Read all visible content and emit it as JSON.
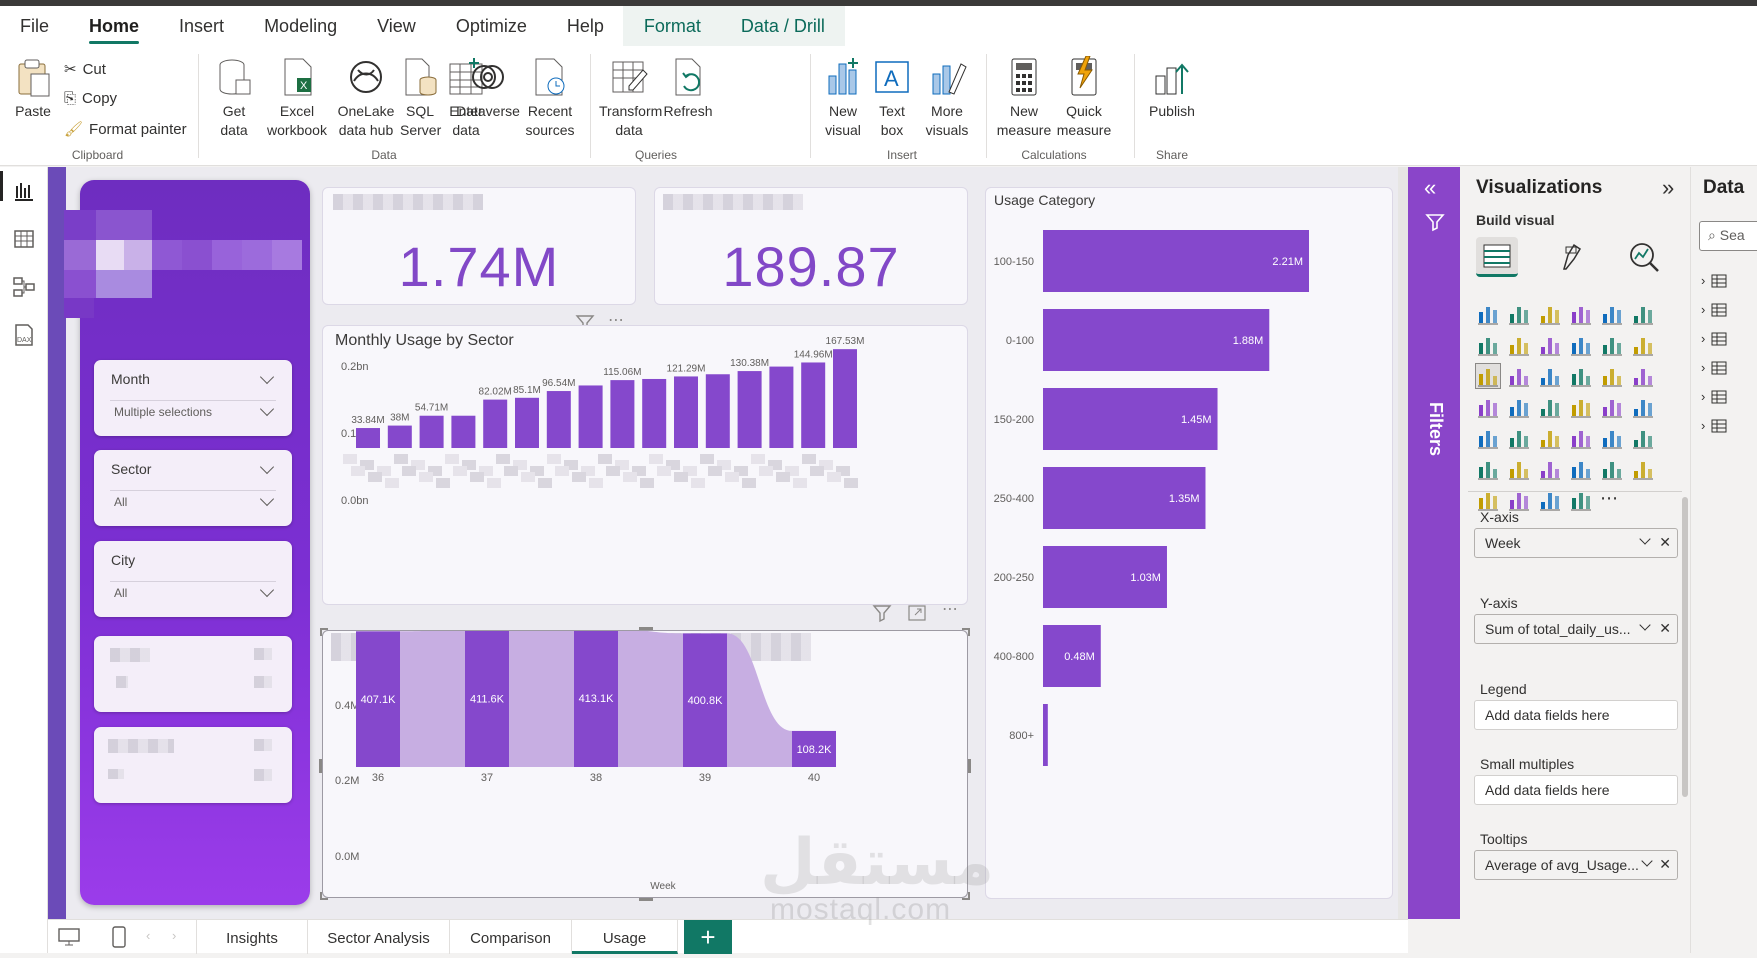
{
  "menu": {
    "tabs": [
      "File",
      "Home",
      "Insert",
      "Modeling",
      "View",
      "Optimize",
      "Help",
      "Format",
      "Data / Drill"
    ],
    "active": "Home"
  },
  "ribbon": {
    "clipboard": {
      "paste": "Paste",
      "cut": "Cut",
      "copy": "Copy",
      "format_painter": "Format painter",
      "label": "Clipboard"
    },
    "data": {
      "get_data": "Get data",
      "excel": "Excel workbook",
      "onelake": "OneLake data hub",
      "sql": "SQL Server",
      "enter": "Enter data",
      "dataverse": "Dataverse",
      "recent": "Recent sources",
      "label": "Data"
    },
    "queries": {
      "transform": "Transform data",
      "refresh": "Refresh",
      "label": "Queries"
    },
    "insert": {
      "new_visual": "New visual",
      "text_box": "Text box",
      "more_visuals": "More visuals",
      "label": "Insert"
    },
    "calculations": {
      "new_measure": "New measure",
      "quick_measure": "Quick measure",
      "label": "Calculations"
    },
    "share": {
      "publish": "Publish",
      "label": "Share"
    }
  },
  "slicers": [
    {
      "title": "Month",
      "value": "Multiple selections"
    },
    {
      "title": "Sector",
      "value": "All"
    },
    {
      "title": "City",
      "value": "All"
    }
  ],
  "cards": [
    {
      "value": "1.74M"
    },
    {
      "value": "189.87"
    }
  ],
  "monthly": {
    "title": "Monthly Usage by Sector",
    "yticks": [
      "0.2bn",
      "0.1bn",
      "0.0bn"
    ]
  },
  "weekly": {
    "xlabel": "Week",
    "yticks": [
      "0.4M",
      "0.2M",
      "0.0M"
    ]
  },
  "usage_category": {
    "title": "Usage Category"
  },
  "chart_data": [
    {
      "type": "bar",
      "title": "Monthly Usage by Sector",
      "ylim": [
        0,
        200000000
      ],
      "values": [
        33.84,
        38,
        54.71,
        54.71,
        82.02,
        85.1,
        96.54,
        106,
        115.06,
        117,
        121.29,
        125,
        130.38,
        138,
        144.96,
        167.53
      ],
      "labels": [
        "33.84M",
        "38M",
        "54.71M",
        "",
        "82.02M",
        "85.1M",
        "96.54M",
        "",
        "115.06M",
        "",
        "121.29M",
        "",
        "130.38M",
        "",
        "144.96M",
        "167.53M"
      ],
      "unit": "M"
    },
    {
      "type": "bar",
      "title": "",
      "xlabel": "Week",
      "categories": [
        "36",
        "37",
        "38",
        "39",
        "40"
      ],
      "values": [
        407.1,
        411.6,
        413.1,
        400.8,
        108.2
      ],
      "labels": [
        "407.1K",
        "411.6K",
        "413.1K",
        "400.8K",
        "108.2K"
      ],
      "ylim": [
        0,
        0.45
      ]
    },
    {
      "type": "bar",
      "orientation": "horizontal",
      "title": "Usage Category",
      "categories": [
        "100-150",
        "0-100",
        "150-200",
        "250-400",
        "200-250",
        "400-800",
        "800+"
      ],
      "values": [
        2.21,
        1.88,
        1.45,
        1.35,
        1.03,
        0.48,
        0.04
      ],
      "labels": [
        "2.21M",
        "1.88M",
        "1.45M",
        "1.35M",
        "1.03M",
        "0.48M",
        ""
      ]
    }
  ],
  "viz_pane": {
    "title": "Visualizations",
    "build": "Build visual",
    "data_title": "Data",
    "search_placeholder": "Sea",
    "wells": [
      {
        "label": "X-axis",
        "value": "Week",
        "filled": true
      },
      {
        "label": "Y-axis",
        "value": "Sum of total_daily_us...",
        "filled": true
      },
      {
        "label": "Legend",
        "value": "Add data fields here",
        "filled": false
      },
      {
        "label": "Small multiples",
        "value": "Add data fields here",
        "filled": false
      },
      {
        "label": "Tooltips",
        "value": "Average of avg_Usage...",
        "filled": true
      }
    ]
  },
  "filters": {
    "label": "Filters"
  },
  "pages": [
    "Insights",
    "Sector Analysis",
    "Comparison",
    "Usage"
  ],
  "active_page": "Usage",
  "watermark": {
    "arabic": "مستقل",
    "latin": "mostaql.com"
  },
  "colors": {
    "accent": "#117865",
    "purple": "#8248c7",
    "bar": "#8548cc",
    "bar_light": "#c7aee2"
  }
}
